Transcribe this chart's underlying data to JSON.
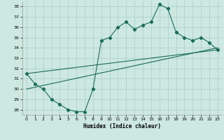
{
  "xlabel": "Humidex (Indice chaleur)",
  "bg_color": "#cce8e0",
  "grid_color": "#aacccc",
  "line_color": "#1a6b5a",
  "xlim": [
    -0.5,
    23.5
  ],
  "ylim": [
    27.5,
    38.5
  ],
  "yticks": [
    28,
    29,
    30,
    31,
    32,
    33,
    34,
    35,
    36,
    37,
    38
  ],
  "xticks": [
    0,
    1,
    2,
    3,
    4,
    5,
    6,
    7,
    8,
    9,
    10,
    11,
    12,
    13,
    14,
    15,
    16,
    17,
    18,
    19,
    20,
    21,
    22,
    23
  ],
  "series1_x": [
    0,
    1,
    2,
    3,
    4,
    5,
    6,
    7,
    8,
    9,
    10,
    11,
    12,
    13,
    14,
    15,
    16,
    17,
    18,
    19,
    20,
    21,
    22,
    23
  ],
  "series1_y": [
    31.5,
    30.5,
    30.0,
    29.0,
    28.5,
    28.0,
    27.8,
    27.8,
    30.0,
    34.7,
    35.0,
    36.0,
    36.5,
    35.8,
    36.2,
    36.5,
    38.2,
    37.8,
    35.5,
    35.0,
    34.7,
    35.0,
    34.5,
    33.8
  ],
  "series2_x": [
    0,
    23
  ],
  "series2_y": [
    31.5,
    33.8
  ],
  "series3_x": [
    0,
    23
  ],
  "series3_y": [
    30.0,
    34.0
  ]
}
